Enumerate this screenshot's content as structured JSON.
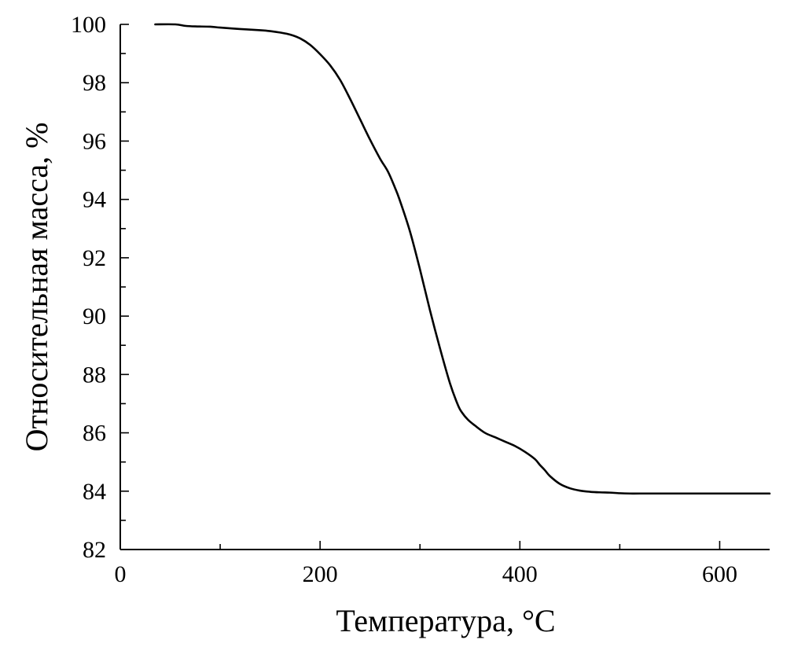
{
  "chart_data": {
    "type": "line",
    "title": "",
    "xlabel": "Температура, °C",
    "ylabel": "Относительная масса, %",
    "xlim": [
      0,
      650
    ],
    "ylim": [
      82,
      100
    ],
    "x_ticks_major": [
      0,
      200,
      400,
      600
    ],
    "x_ticks_minor": [
      100,
      300,
      500
    ],
    "y_ticks_major": [
      82,
      84,
      86,
      88,
      90,
      92,
      94,
      96,
      98,
      100
    ],
    "grid": false,
    "legend": "none",
    "line_color": "#000000",
    "series": [
      {
        "x": [
          35,
          55,
          65,
          75,
          90,
          100,
          120,
          140,
          150,
          160,
          170,
          180,
          190,
          200,
          210,
          220,
          230,
          240,
          250,
          260,
          268,
          275,
          280,
          290,
          300,
          310,
          320,
          330,
          338,
          342,
          348,
          355,
          365,
          375,
          385,
          395,
          405,
          415,
          420,
          425,
          430,
          440,
          450,
          460,
          470,
          480,
          490,
          500,
          510,
          520,
          550,
          600,
          650
        ],
        "y": [
          100.0,
          100.0,
          99.95,
          99.93,
          99.92,
          99.89,
          99.84,
          99.8,
          99.77,
          99.72,
          99.65,
          99.52,
          99.3,
          98.98,
          98.6,
          98.1,
          97.45,
          96.75,
          96.05,
          95.4,
          94.95,
          94.4,
          93.95,
          92.9,
          91.6,
          90.2,
          88.9,
          87.7,
          86.95,
          86.7,
          86.45,
          86.25,
          86.0,
          85.85,
          85.7,
          85.55,
          85.35,
          85.1,
          84.9,
          84.72,
          84.52,
          84.25,
          84.1,
          84.02,
          83.98,
          83.96,
          83.95,
          83.93,
          83.92,
          83.92,
          83.92,
          83.92,
          83.92
        ]
      }
    ]
  }
}
